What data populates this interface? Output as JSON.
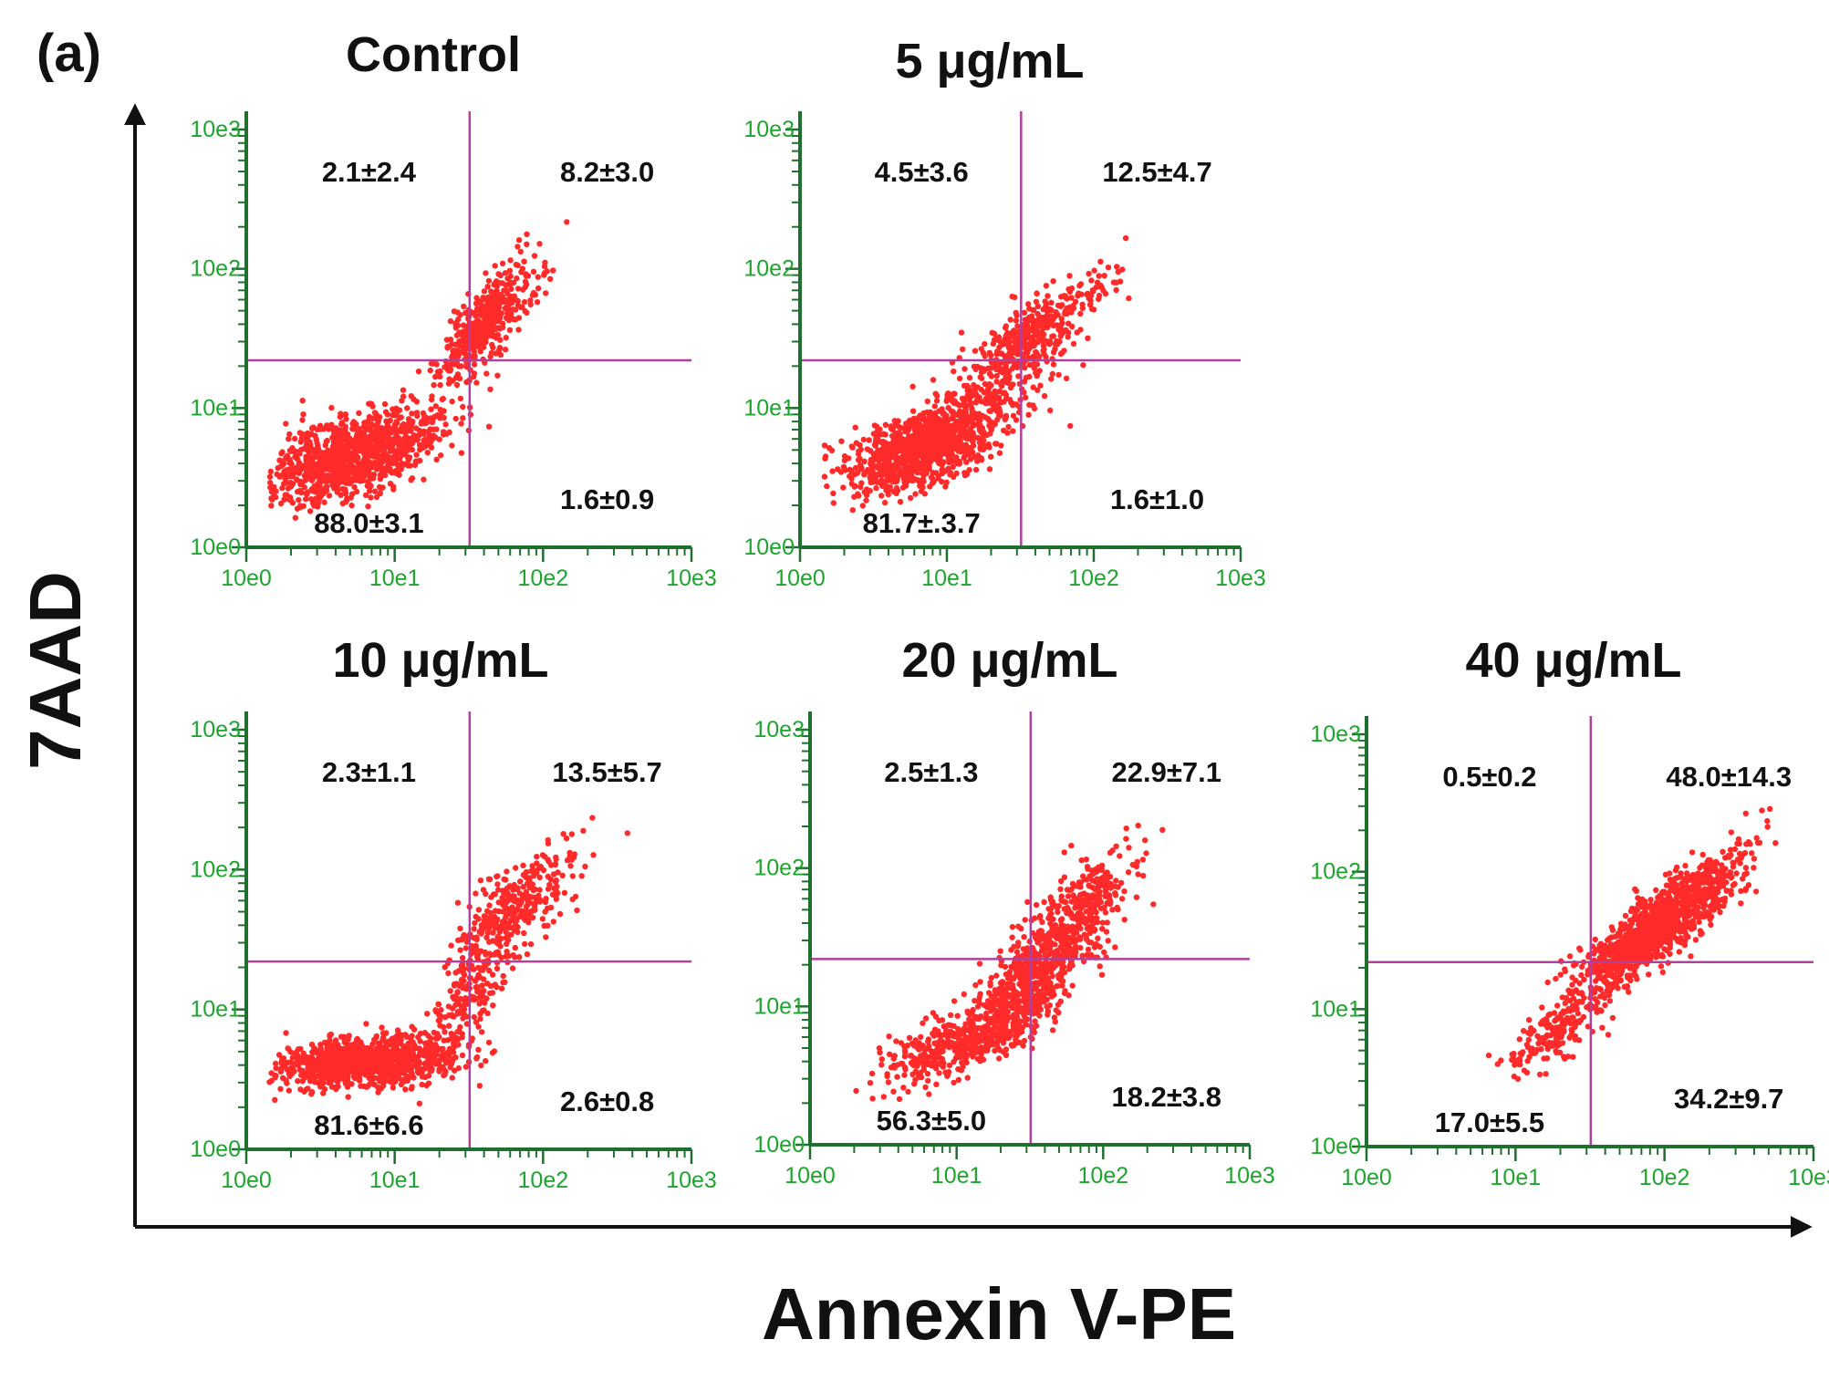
{
  "figure_label": "(a)",
  "colors": {
    "points": "#ff2a2a",
    "axis": "#1f6f2f",
    "tick_text": "#1ea52e",
    "quadrant": "#b0409c",
    "text": "#111111",
    "frame": "#111111"
  },
  "chart_data": {
    "type": "scatter",
    "xlabel": "Annexin V-PE",
    "ylabel": "7AAD",
    "xscale": "log",
    "yscale": "log",
    "xlim": [
      1,
      1000
    ],
    "ylim": [
      1,
      1000
    ],
    "tick_labels": [
      "10e0",
      "10e1",
      "10e2",
      "10e3"
    ],
    "panels": [
      {
        "title": "Control",
        "gate": {
          "x": 32,
          "y": 22
        },
        "quadrants": {
          "upper_left": "2.1±2.4",
          "upper_right": "8.2±3.0",
          "lower_left": "88.0±3.1",
          "lower_right": "1.6±0.9"
        },
        "populations": [
          {
            "log_center": [
              0.7,
              0.66
            ],
            "count": 1100,
            "spread_along": 0.33,
            "spread_across": 0.13,
            "angle": 22
          },
          {
            "log_center": [
              1.58,
              1.55
            ],
            "count": 380,
            "spread_along": 0.22,
            "spread_across": 0.09,
            "angle": 55
          },
          {
            "log_center": [
              1.78,
              1.88
            ],
            "count": 60,
            "spread_along": 0.22,
            "spread_across": 0.09,
            "angle": 42
          }
        ]
      },
      {
        "title": "5 μg/mL",
        "gate": {
          "x": 32,
          "y": 22
        },
        "quadrants": {
          "upper_left": "4.5±3.6",
          "upper_right": "12.5±4.7",
          "lower_left": "81.7±.3.7",
          "lower_right": "1.6±1.0"
        },
        "populations": [
          {
            "log_center": [
              0.82,
              0.7
            ],
            "count": 900,
            "spread_along": 0.28,
            "spread_across": 0.12,
            "angle": 18
          },
          {
            "log_center": [
              1.15,
              0.98
            ],
            "count": 250,
            "spread_along": 0.28,
            "spread_across": 0.1,
            "angle": 35
          },
          {
            "log_center": [
              1.55,
              1.48
            ],
            "count": 380,
            "spread_along": 0.25,
            "spread_across": 0.11,
            "angle": 40
          },
          {
            "log_center": [
              1.95,
              1.85
            ],
            "count": 40,
            "spread_along": 0.18,
            "spread_across": 0.08,
            "angle": 35
          }
        ]
      },
      {
        "title": "10 μg/mL",
        "gate": {
          "x": 32,
          "y": 22
        },
        "quadrants": {
          "upper_left": "2.3±1.1",
          "upper_right": "13.5±5.7",
          "lower_left": "81.6±6.6",
          "lower_right": "2.6±0.8"
        },
        "populations": [
          {
            "log_center": [
              0.8,
              0.62
            ],
            "count": 1050,
            "spread_along": 0.3,
            "spread_across": 0.085,
            "angle": 4
          },
          {
            "log_center": [
              1.5,
              1.1
            ],
            "count": 200,
            "spread_along": 0.28,
            "spread_across": 0.09,
            "angle": 60
          },
          {
            "log_center": [
              1.8,
              1.72
            ],
            "count": 330,
            "spread_along": 0.28,
            "spread_across": 0.11,
            "angle": 45
          }
        ]
      },
      {
        "title": "20 μg/mL",
        "gate": {
          "x": 32,
          "y": 22
        },
        "quadrants": {
          "upper_left": "2.5±1.3",
          "upper_right": "22.9±7.1",
          "lower_left": "56.3±5.0",
          "lower_right": "18.2±3.8"
        },
        "populations": [
          {
            "log_center": [
              1.05,
              0.75
            ],
            "count": 420,
            "spread_along": 0.28,
            "spread_across": 0.1,
            "angle": 22
          },
          {
            "log_center": [
              1.5,
              1.15
            ],
            "count": 500,
            "spread_along": 0.26,
            "spread_across": 0.11,
            "angle": 45
          },
          {
            "log_center": [
              1.8,
              1.65
            ],
            "count": 400,
            "spread_along": 0.28,
            "spread_across": 0.11,
            "angle": 48
          }
        ]
      },
      {
        "title": "40 μg/mL",
        "gate": {
          "x": 32,
          "y": 22
        },
        "quadrants": {
          "upper_left": "0.5±0.2",
          "upper_right": "48.0±14.3",
          "lower_left": "17.0±5.5",
          "lower_right": "34.2±9.7"
        },
        "populations": [
          {
            "log_center": [
              1.95,
              1.6
            ],
            "count": 1250,
            "spread_along": 0.36,
            "spread_across": 0.1,
            "angle": 43
          },
          {
            "log_center": [
              1.25,
              0.82
            ],
            "count": 160,
            "spread_along": 0.18,
            "spread_across": 0.09,
            "angle": 40
          }
        ]
      }
    ]
  }
}
